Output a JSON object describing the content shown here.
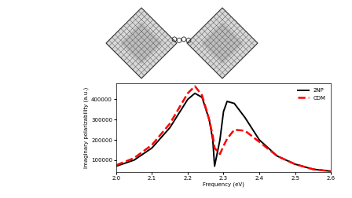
{
  "chart_data": {
    "type": "line",
    "x_label": "Frequency (eV)",
    "y_label": "Imaginary polarizability (a.u.)",
    "x": [
      2.0,
      2.05,
      2.1,
      2.15,
      2.2,
      2.22,
      2.24,
      2.26,
      2.27,
      2.275,
      2.29,
      2.3,
      2.31,
      2.33,
      2.36,
      2.4,
      2.45,
      2.5,
      2.55,
      2.6
    ],
    "series": [
      {
        "name": "2NP",
        "color": "#000000",
        "line_style": "solid",
        "values": [
          70000,
          100000,
          160000,
          260000,
          400000,
          430000,
          410000,
          300000,
          200000,
          70000,
          200000,
          340000,
          390000,
          380000,
          310000,
          200000,
          120000,
          80000,
          55000,
          45000
        ]
      },
      {
        "name": "CDM",
        "color": "#ff0000",
        "line_style": "dashed",
        "values": [
          75000,
          110000,
          175000,
          280000,
          430000,
          465000,
          420000,
          300000,
          220000,
          160000,
          130000,
          170000,
          205000,
          250000,
          245000,
          190000,
          120000,
          80000,
          55000,
          45000
        ]
      }
    ],
    "xlim": [
      2.0,
      2.6
    ],
    "xticks": [
      2.0,
      2.1,
      2.2,
      2.3,
      2.4,
      2.5,
      2.6
    ],
    "ylim": [
      40000,
      480000
    ],
    "yticks": [
      100000,
      200000,
      300000,
      400000
    ],
    "legend": "upper right",
    "grid": false
  }
}
